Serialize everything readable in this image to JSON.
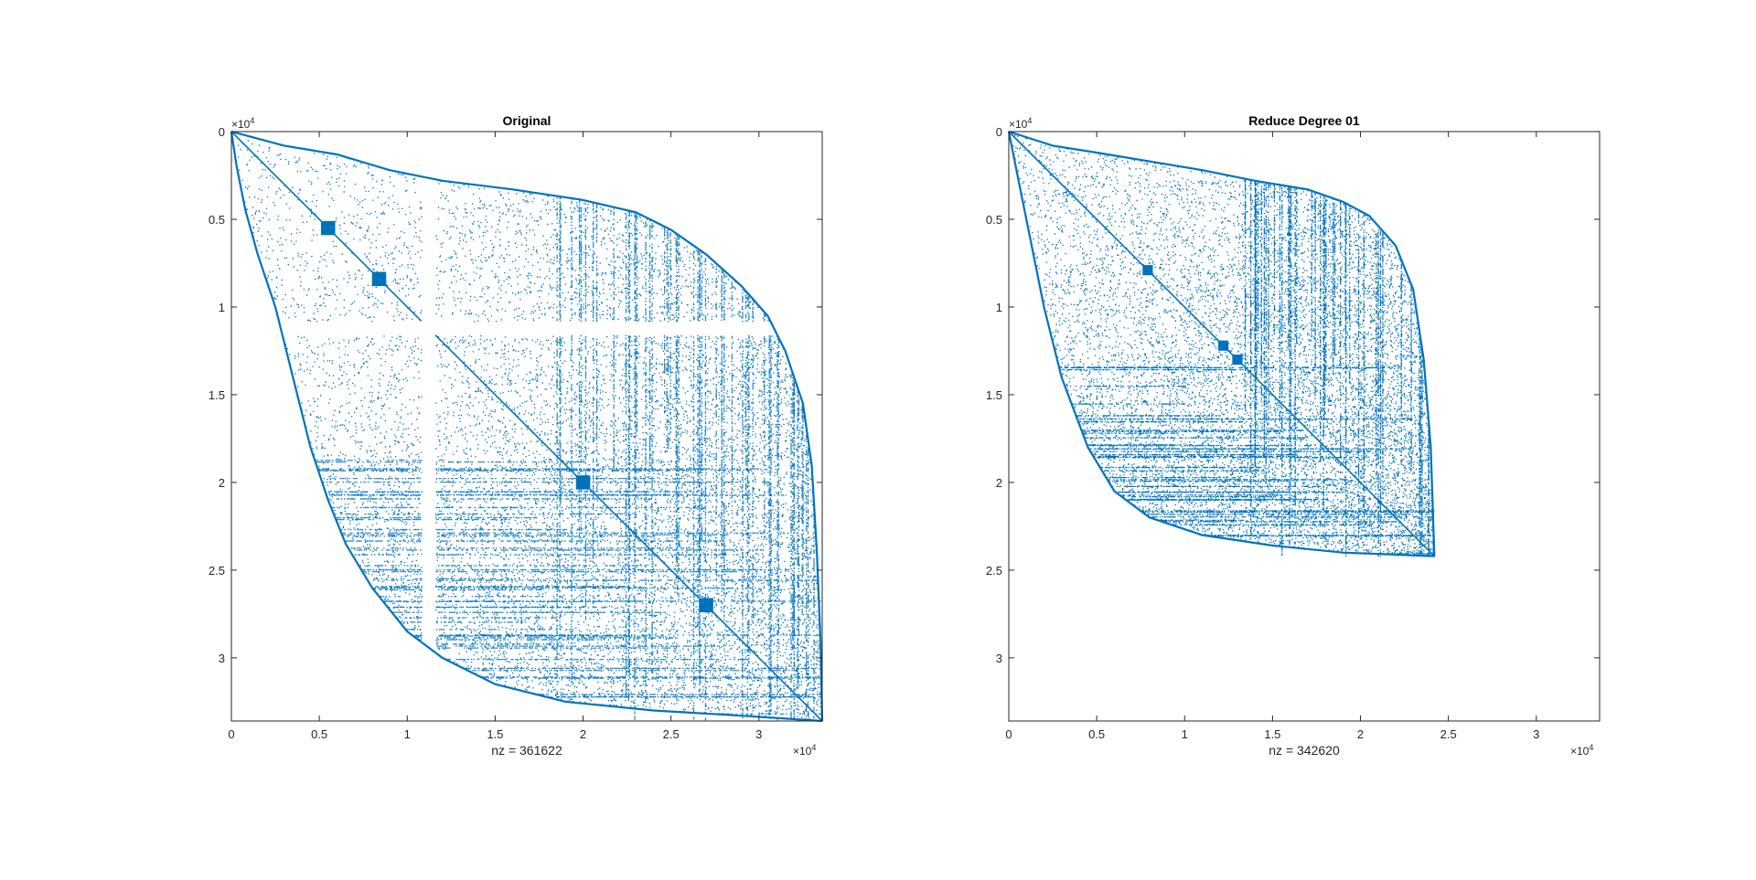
{
  "figure": {
    "background": "#ffffff"
  },
  "chart_data": [
    {
      "type": "scatter",
      "subtype": "spy",
      "title": "Original",
      "xlabel": "nz = 361622",
      "ylabel": "",
      "nz": 361622,
      "matrix_size": 33600,
      "xlim": [
        0,
        33600
      ],
      "ylim": [
        33600,
        0
      ],
      "y_direction": "reversed",
      "xticks": [
        0,
        5000,
        10000,
        15000,
        20000,
        25000,
        30000
      ],
      "xtick_labels": [
        "0",
        "0.5",
        "1",
        "1.5",
        "2",
        "2.5",
        "3"
      ],
      "yticks": [
        0,
        5000,
        10000,
        15000,
        20000,
        25000,
        30000
      ],
      "ytick_labels": [
        "0",
        "0.5",
        "1",
        "1.5",
        "2",
        "2.5",
        "3"
      ],
      "x_exponent_base": "×10",
      "x_exponent": "4",
      "y_exponent_base": "×10",
      "y_exponent": "4",
      "marker_color": "#0072BD",
      "grid": false,
      "upper_boundary": [
        [
          0,
          0
        ],
        [
          3000,
          800
        ],
        [
          6000,
          1300
        ],
        [
          9000,
          2200
        ],
        [
          12000,
          2800
        ],
        [
          16000,
          3300
        ],
        [
          20000,
          3900
        ],
        [
          23000,
          4600
        ],
        [
          25000,
          5600
        ],
        [
          27000,
          7000
        ],
        [
          29000,
          8800
        ],
        [
          30500,
          10500
        ],
        [
          31500,
          12500
        ],
        [
          32500,
          15500
        ],
        [
          33000,
          19000
        ],
        [
          33300,
          24000
        ],
        [
          33500,
          29000
        ],
        [
          33600,
          33600
        ]
      ],
      "lower_boundary": [
        [
          0,
          0
        ],
        [
          300,
          2000
        ],
        [
          800,
          4500
        ],
        [
          1500,
          7000
        ],
        [
          2500,
          10000
        ],
        [
          3500,
          14000
        ],
        [
          4500,
          18000
        ],
        [
          5500,
          21000
        ],
        [
          6500,
          23500
        ],
        [
          8000,
          26000
        ],
        [
          10000,
          28500
        ],
        [
          12000,
          30000
        ],
        [
          15000,
          31500
        ],
        [
          19000,
          32500
        ],
        [
          24000,
          33000
        ],
        [
          29000,
          33300
        ],
        [
          33600,
          33600
        ]
      ],
      "gap_columns": [
        [
          10800,
          11600
        ]
      ],
      "gap_rows": [
        [
          10800,
          11600
        ]
      ],
      "dense_blocks": [
        [
          8400,
          8400
        ],
        [
          5500,
          5500
        ],
        [
          20000,
          20000
        ],
        [
          27000,
          27000
        ]
      ],
      "diagonal_break": [
        10800,
        11600
      ]
    },
    {
      "type": "scatter",
      "subtype": "spy",
      "title": "Reduce Degree 01",
      "xlabel": "nz = 342620",
      "ylabel": "",
      "nz": 342620,
      "matrix_size": 24200,
      "xlim": [
        0,
        33600
      ],
      "ylim": [
        33600,
        0
      ],
      "y_direction": "reversed",
      "xticks": [
        0,
        5000,
        10000,
        15000,
        20000,
        25000,
        30000
      ],
      "xtick_labels": [
        "0",
        "0.5",
        "1",
        "1.5",
        "2",
        "2.5",
        "3"
      ],
      "yticks": [
        0,
        5000,
        10000,
        15000,
        20000,
        25000,
        30000
      ],
      "ytick_labels": [
        "0",
        "0.5",
        "1",
        "1.5",
        "2",
        "2.5",
        "3"
      ],
      "x_exponent_base": "×10",
      "x_exponent": "4",
      "y_exponent_base": "×10",
      "y_exponent": "4",
      "marker_color": "#0072BD",
      "grid": false,
      "upper_boundary": [
        [
          0,
          0
        ],
        [
          2500,
          800
        ],
        [
          5000,
          1200
        ],
        [
          8000,
          1700
        ],
        [
          11000,
          2200
        ],
        [
          14000,
          2800
        ],
        [
          17000,
          3300
        ],
        [
          19000,
          4000
        ],
        [
          20500,
          4800
        ],
        [
          22000,
          6500
        ],
        [
          23000,
          9000
        ],
        [
          23600,
          13000
        ],
        [
          24000,
          18000
        ],
        [
          24200,
          24200
        ]
      ],
      "lower_boundary": [
        [
          0,
          0
        ],
        [
          600,
          3000
        ],
        [
          1300,
          6500
        ],
        [
          2000,
          10000
        ],
        [
          3000,
          14000
        ],
        [
          4500,
          18000
        ],
        [
          6000,
          20500
        ],
        [
          8000,
          22000
        ],
        [
          11000,
          23000
        ],
        [
          15000,
          23600
        ],
        [
          19000,
          24000
        ],
        [
          24200,
          24200
        ]
      ],
      "gap_columns": [],
      "gap_rows": [],
      "dense_blocks": [
        [
          7900,
          7900
        ],
        [
          12200,
          12200
        ],
        [
          13000,
          13000
        ]
      ],
      "diagonal_break": null
    }
  ]
}
